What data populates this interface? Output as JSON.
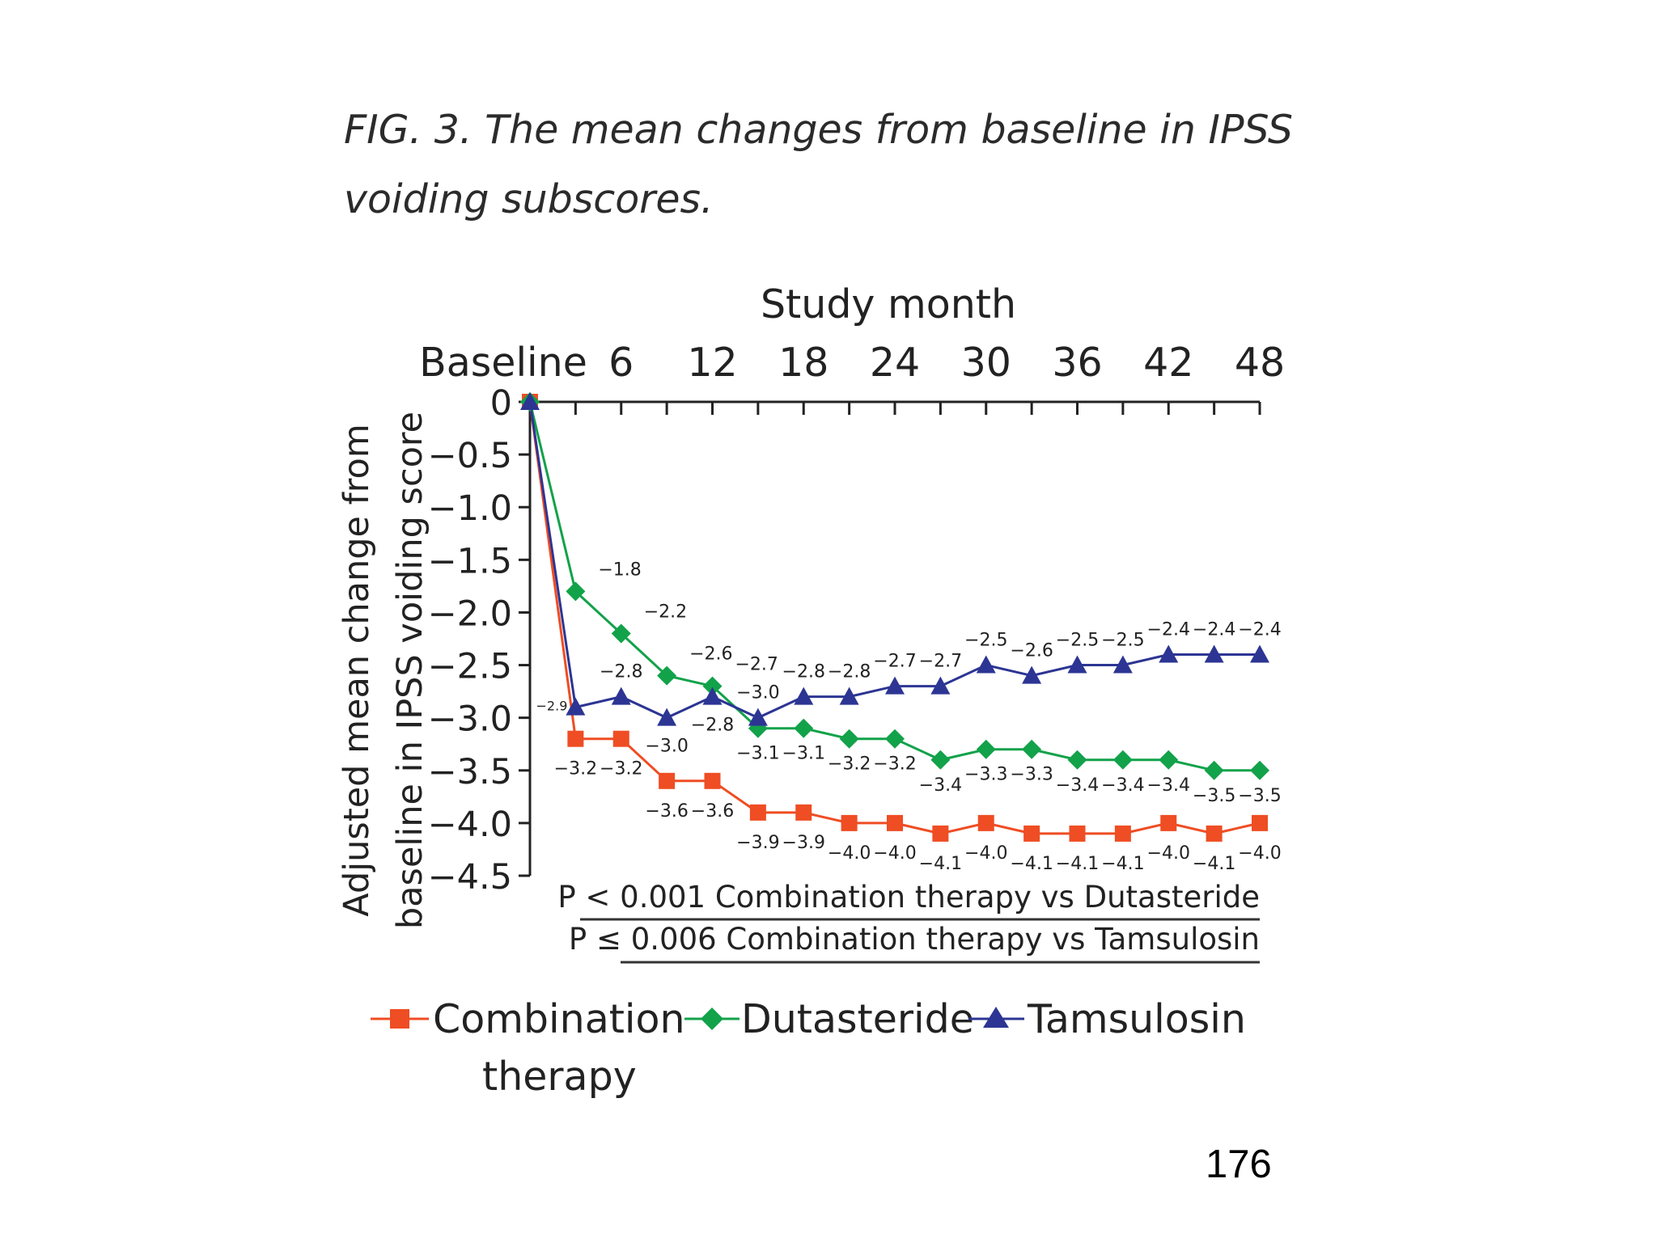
{
  "caption": {
    "label": "FIG. 3.",
    "line1_rest": "The mean changes from baseline in IPSS",
    "line2": "voiding subscores."
  },
  "page_number": "176",
  "colors": {
    "combination": "#ef4d23",
    "dutasteride": "#12a24a",
    "tamsulosin": "#2c3593",
    "axis": "#222222"
  },
  "chart_data": {
    "type": "line",
    "title": "Study month",
    "xlabel": "Study month",
    "ylabel_line1": "Adjusted mean change from",
    "ylabel_line2": "baseline in IPSS voiding score",
    "x_tick_labels": [
      "Baseline",
      "6",
      "12",
      "18",
      "24",
      "30",
      "36",
      "42",
      "48"
    ],
    "x_tick_months": [
      0,
      6,
      12,
      18,
      24,
      30,
      36,
      42,
      48
    ],
    "x_minor_months": [
      0,
      3,
      6,
      9,
      12,
      15,
      18,
      21,
      24,
      27,
      30,
      33,
      36,
      39,
      42,
      45,
      48
    ],
    "y_ticks": [
      0,
      -0.5,
      -1.0,
      -1.5,
      -2.0,
      -2.5,
      -3.0,
      -3.5,
      -4.0,
      -4.5
    ],
    "y_tick_labels": [
      "0",
      "−0.5",
      "−1.0",
      "−1.5",
      "−2.0",
      "−2.5",
      "−3.0",
      "−3.5",
      "−4.0",
      "−4.5"
    ],
    "ylim": [
      -4.5,
      0
    ],
    "xlim": [
      0,
      48
    ],
    "series": [
      {
        "name": "Combination therapy",
        "key": "combination",
        "marker": "square",
        "x": [
          0,
          3,
          6,
          9,
          12,
          15,
          18,
          21,
          24,
          27,
          30,
          33,
          36,
          39,
          42,
          45,
          48
        ],
        "values": [
          0,
          -3.2,
          -3.2,
          -3.6,
          -3.6,
          -3.9,
          -3.9,
          -4.0,
          -4.0,
          -4.1,
          -4.0,
          -4.1,
          -4.1,
          -4.1,
          -4.0,
          -4.1,
          -4.0
        ],
        "labels": [
          "",
          "−3.2",
          "−3.2",
          "−3.6",
          "−3.6",
          "−3.9",
          "−3.9",
          "−4.0",
          "−4.0",
          "−4.1",
          "−4.0",
          "−4.1",
          "−4.1",
          "−4.1",
          "−4.0",
          "−4.1",
          "−4.0"
        ]
      },
      {
        "name": "Dutasteride",
        "key": "dutasteride",
        "marker": "diamond",
        "x": [
          0,
          3,
          6,
          9,
          12,
          15,
          18,
          21,
          24,
          27,
          30,
          33,
          36,
          39,
          42,
          45,
          48
        ],
        "values": [
          0,
          -1.8,
          -2.2,
          -2.6,
          -2.7,
          -3.1,
          -3.1,
          -3.2,
          -3.2,
          -3.4,
          -3.3,
          -3.3,
          -3.4,
          -3.4,
          -3.4,
          -3.5,
          -3.5
        ],
        "labels": [
          "",
          "−1.8",
          "−2.2",
          "−2.6",
          "−2.7",
          "−3.1",
          "−3.1",
          "−3.2",
          "−3.2",
          "−3.4",
          "−3.3",
          "−3.3",
          "−3.4",
          "−3.4",
          "−3.4",
          "−3.5",
          "−3.5"
        ]
      },
      {
        "name": "Tamsulosin",
        "key": "tamsulosin",
        "marker": "triangle",
        "x": [
          0,
          3,
          6,
          9,
          12,
          15,
          18,
          21,
          24,
          27,
          30,
          33,
          36,
          39,
          42,
          45,
          48
        ],
        "values": [
          0,
          -2.9,
          -2.8,
          -3.0,
          -2.8,
          -3.0,
          -2.8,
          -2.8,
          -2.7,
          -2.7,
          -2.5,
          -2.6,
          -2.5,
          -2.5,
          -2.4,
          -2.4,
          -2.4
        ],
        "labels": [
          "",
          "−2.9",
          "−2.8",
          "−3.0",
          "−2.8",
          "−3.0",
          "−2.8",
          "−2.8",
          "−2.7",
          "−2.7",
          "−2.5",
          "−2.6",
          "−2.5",
          "−2.5",
          "−2.4",
          "−2.4",
          "−2.4"
        ]
      }
    ],
    "annotations": [
      "P < 0.001 Combination therapy vs Dutasteride",
      "P ≤ 0.006 Combination therapy vs Tamsulosin"
    ],
    "legend": {
      "position": "bottom",
      "items": [
        "Combination",
        "therapy",
        "Dutasteride",
        "Tamsulosin"
      ]
    }
  }
}
